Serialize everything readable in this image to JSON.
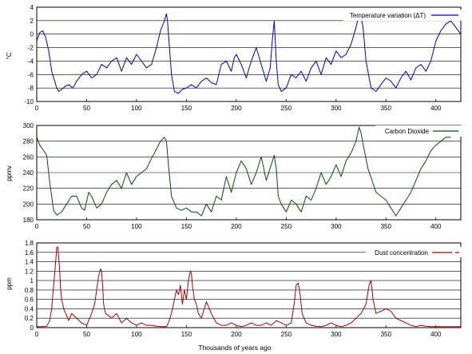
{
  "chart_data": [
    {
      "type": "line",
      "ylabel": "°C",
      "xlim": [
        0,
        425
      ],
      "ylim": [
        -10,
        4
      ],
      "yticks": [
        -10,
        -8,
        -6,
        -4,
        -2,
        0,
        2,
        4
      ],
      "xticks": [
        0,
        50,
        100,
        150,
        200,
        250,
        300,
        350,
        400
      ],
      "grid": "horizontal",
      "legend_position": "top-right",
      "series": [
        {
          "name": "Temperature variation (ΔT)",
          "color": "#0000cc",
          "x": [
            0,
            3,
            6,
            9,
            12,
            15,
            18,
            20,
            22,
            25,
            28,
            32,
            36,
            40,
            45,
            50,
            55,
            60,
            65,
            70,
            75,
            80,
            85,
            90,
            95,
            100,
            105,
            110,
            115,
            120,
            124,
            128,
            130,
            131,
            133,
            135,
            138,
            142,
            146,
            150,
            155,
            160,
            165,
            170,
            175,
            180,
            185,
            190,
            195,
            198,
            200,
            205,
            210,
            215,
            220,
            225,
            230,
            234,
            236,
            238,
            240,
            242,
            245,
            250,
            255,
            260,
            265,
            270,
            275,
            280,
            285,
            290,
            295,
            300,
            305,
            310,
            315,
            320,
            323,
            325,
            327,
            330,
            335,
            340,
            345,
            350,
            355,
            360,
            365,
            370,
            375,
            380,
            385,
            390,
            395,
            400,
            405,
            410,
            415,
            420,
            425
          ],
          "y": [
            -1.0,
            0.2,
            0.5,
            -0.5,
            -2.5,
            -5.5,
            -7.0,
            -8.0,
            -8.5,
            -8.2,
            -7.8,
            -7.5,
            -8.0,
            -7.0,
            -6.0,
            -5.5,
            -6.5,
            -6.0,
            -4.5,
            -5.0,
            -4.0,
            -3.5,
            -5.5,
            -3.5,
            -4.5,
            -3.0,
            -4.0,
            -5.0,
            -4.5,
            -2.0,
            0.5,
            2.0,
            3.0,
            2.0,
            -2.0,
            -6.0,
            -8.5,
            -8.8,
            -8.2,
            -8.0,
            -7.5,
            -8.0,
            -7.0,
            -6.5,
            -7.2,
            -7.5,
            -4.5,
            -4.0,
            -5.5,
            -3.5,
            -3.0,
            -4.5,
            -6.5,
            -4.0,
            -2.0,
            -4.5,
            -7.0,
            -5.0,
            -1.0,
            2.0,
            -4.0,
            -7.5,
            -8.5,
            -8.0,
            -6.0,
            -6.5,
            -5.5,
            -7.0,
            -5.0,
            -4.0,
            -6.0,
            -3.5,
            -4.5,
            -2.5,
            -3.5,
            -3.0,
            -1.5,
            1.0,
            3.0,
            2.5,
            1.0,
            -4.0,
            -8.0,
            -8.5,
            -7.5,
            -6.5,
            -7.0,
            -8.0,
            -6.5,
            -5.5,
            -6.8,
            -5.0,
            -4.5,
            -5.5,
            -4.0,
            -1.0,
            0.5,
            1.5,
            2.0,
            1.0,
            0.0
          ]
        }
      ]
    },
    {
      "type": "line",
      "ylabel": "ppmv",
      "xlim": [
        0,
        425
      ],
      "ylim": [
        180,
        300
      ],
      "yticks": [
        180,
        200,
        220,
        240,
        260,
        280,
        300
      ],
      "xticks": [
        0,
        50,
        100,
        150,
        200,
        250,
        300,
        350,
        400
      ],
      "grid": "horizontal",
      "legend_position": "top-right",
      "series": [
        {
          "name": "Carbon Dioxide",
          "color": "#005500",
          "x": [
            0,
            3,
            7,
            10,
            13,
            17,
            20,
            25,
            30,
            35,
            40,
            45,
            48,
            52,
            55,
            60,
            65,
            70,
            75,
            80,
            85,
            90,
            95,
            100,
            105,
            110,
            115,
            120,
            124,
            128,
            130,
            132,
            135,
            140,
            145,
            150,
            155,
            160,
            165,
            170,
            175,
            180,
            185,
            190,
            195,
            200,
            205,
            210,
            215,
            220,
            225,
            230,
            235,
            238,
            240,
            242,
            245,
            250,
            255,
            260,
            265,
            270,
            275,
            280,
            285,
            290,
            295,
            300,
            305,
            310,
            315,
            320,
            323,
            325,
            328,
            332,
            336,
            340,
            345,
            350,
            355,
            360,
            365,
            370,
            375,
            380,
            385,
            390,
            395,
            400,
            405,
            410,
            415
          ],
          "y": [
            285,
            275,
            268,
            262,
            228,
            192,
            186,
            190,
            200,
            210,
            210,
            195,
            192,
            215,
            210,
            195,
            200,
            215,
            225,
            230,
            220,
            240,
            225,
            235,
            240,
            245,
            258,
            270,
            280,
            285,
            280,
            250,
            210,
            195,
            192,
            195,
            190,
            190,
            185,
            200,
            190,
            210,
            205,
            235,
            215,
            240,
            255,
            245,
            225,
            240,
            260,
            230,
            250,
            262,
            245,
            210,
            200,
            190,
            205,
            200,
            190,
            210,
            205,
            220,
            240,
            225,
            235,
            250,
            235,
            255,
            265,
            280,
            298,
            290,
            270,
            245,
            230,
            215,
            210,
            205,
            195,
            185,
            195,
            205,
            215,
            230,
            245,
            255,
            268,
            275,
            280,
            285,
            285
          ]
        }
      ]
    },
    {
      "type": "line",
      "ylabel": "ppm",
      "xlabel": "Thousands of years ago",
      "xlim": [
        0,
        425
      ],
      "ylim": [
        0,
        1.8
      ],
      "yticks": [
        0,
        0.2,
        0.4,
        0.6,
        0.8,
        1,
        1.2,
        1.4,
        1.6,
        1.8
      ],
      "xticks": [
        0,
        50,
        100,
        150,
        200,
        250,
        300,
        350,
        400
      ],
      "grid": "horizontal",
      "legend_position": "top-right",
      "series": [
        {
          "name": "Dust concentration",
          "color": "#aa0000",
          "x": [
            0,
            5,
            10,
            13,
            15,
            17,
            19,
            20,
            21,
            22,
            23,
            24,
            25,
            27,
            29,
            32,
            35,
            40,
            45,
            50,
            55,
            58,
            60,
            62,
            64,
            65,
            66,
            67,
            69,
            72,
            75,
            80,
            85,
            90,
            95,
            100,
            105,
            110,
            115,
            120,
            125,
            130,
            132,
            135,
            138,
            140,
            142,
            144,
            146,
            148,
            150,
            152,
            154,
            155,
            156,
            158,
            160,
            162,
            165,
            170,
            175,
            180,
            185,
            190,
            195,
            200,
            205,
            210,
            215,
            220,
            225,
            230,
            235,
            240,
            245,
            250,
            255,
            258,
            260,
            262,
            264,
            266,
            270,
            275,
            280,
            285,
            290,
            295,
            300,
            305,
            310,
            315,
            320,
            325,
            330,
            333,
            335,
            337,
            340,
            345,
            350,
            355,
            360,
            365,
            370,
            375,
            380,
            385,
            390,
            395,
            400,
            405,
            410,
            415,
            420,
            425
          ],
          "y": [
            0.02,
            0.02,
            0.03,
            0.15,
            0.4,
            0.9,
            1.4,
            1.7,
            1.72,
            1.5,
            1.2,
            0.8,
            0.6,
            0.4,
            0.3,
            0.15,
            0.3,
            0.2,
            0.1,
            0.05,
            0.3,
            0.5,
            0.8,
            1.1,
            1.25,
            1.2,
            0.9,
            0.5,
            0.3,
            0.25,
            0.2,
            0.3,
            0.1,
            0.2,
            0.1,
            0.05,
            0.1,
            0.05,
            0.05,
            0.03,
            0.02,
            0.02,
            0.1,
            0.3,
            0.6,
            0.8,
            0.7,
            0.9,
            0.5,
            0.8,
            0.6,
            1.0,
            1.2,
            1.15,
            0.9,
            0.6,
            0.5,
            0.3,
            0.2,
            0.55,
            0.3,
            0.1,
            0.05,
            0.05,
            0.1,
            0.05,
            0.02,
            0.05,
            0.1,
            0.05,
            0.05,
            0.1,
            0.05,
            0.15,
            0.1,
            0.05,
            0.1,
            0.5,
            0.9,
            0.95,
            0.7,
            0.3,
            0.1,
            0.05,
            0.03,
            0.02,
            0.05,
            0.1,
            0.05,
            0.02,
            0.05,
            0.1,
            0.2,
            0.3,
            0.5,
            0.9,
            1.0,
            0.6,
            0.3,
            0.35,
            0.4,
            0.35,
            0.2,
            0.15,
            0.1,
            0.05,
            0.02,
            0.05,
            0.03,
            0.02,
            0.02,
            0.02,
            0.02,
            0.02,
            0.02,
            0.02
          ]
        }
      ]
    }
  ]
}
